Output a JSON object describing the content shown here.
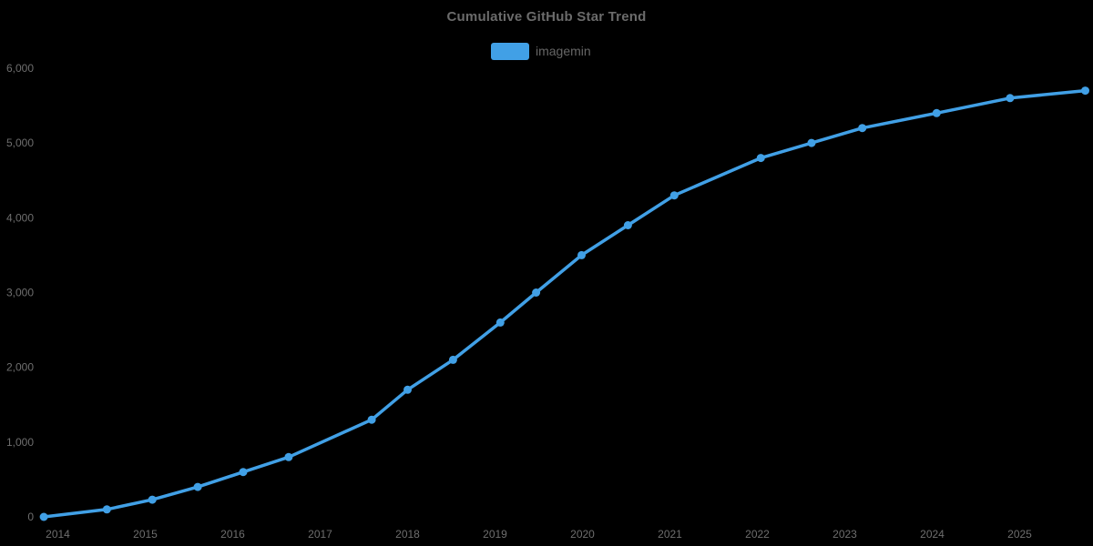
{
  "page": {
    "background_color": "#000000"
  },
  "header": {
    "title": "Cumulative GitHub Star Trend"
  },
  "legend": {
    "label": "imagemin",
    "swatch_color": "#41a0e6"
  },
  "colors": {
    "title_text": "#6b6b6b",
    "legend_text": "#666666",
    "axis_text": "#6e6e6e",
    "line": "#41a0e6",
    "background": "#000000"
  },
  "chart_data": {
    "type": "line",
    "title": "Cumulative GitHub Star Trend",
    "xlabel": "",
    "ylabel": "",
    "xlim": [
      2013.68,
      2025.84
    ],
    "ylim": [
      0,
      6000
    ],
    "grid": false,
    "legend_position": "top-center",
    "x_tick_values": [
      2014,
      2015,
      2016,
      2017,
      2018,
      2019,
      2020,
      2021,
      2022,
      2023,
      2024,
      2025
    ],
    "x_tick_labels": [
      "2014",
      "2015",
      "2016",
      "2017",
      "2018",
      "2019",
      "2020",
      "2021",
      "2022",
      "2023",
      "2024",
      "2025"
    ],
    "y_tick_values": [
      0,
      1000,
      2000,
      3000,
      4000,
      5000,
      6000
    ],
    "y_tick_labels": [
      "0",
      "1,000",
      "2,000",
      "3,000",
      "4,000",
      "5,000",
      "6,000"
    ],
    "series": [
      {
        "name": "imagemin",
        "color": "#41a0e6",
        "x": [
          2013.84,
          2014.56,
          2015.08,
          2015.6,
          2016.12,
          2016.64,
          2017.59,
          2018.0,
          2018.52,
          2019.06,
          2019.47,
          2019.99,
          2020.52,
          2021.05,
          2022.04,
          2022.62,
          2023.2,
          2024.05,
          2024.89,
          2025.75
        ],
        "values": [
          0,
          100,
          230,
          400,
          600,
          800,
          1300,
          1700,
          2100,
          2600,
          3000,
          3500,
          3900,
          4300,
          4800,
          5000,
          5200,
          5400,
          5600,
          5700
        ]
      }
    ]
  }
}
